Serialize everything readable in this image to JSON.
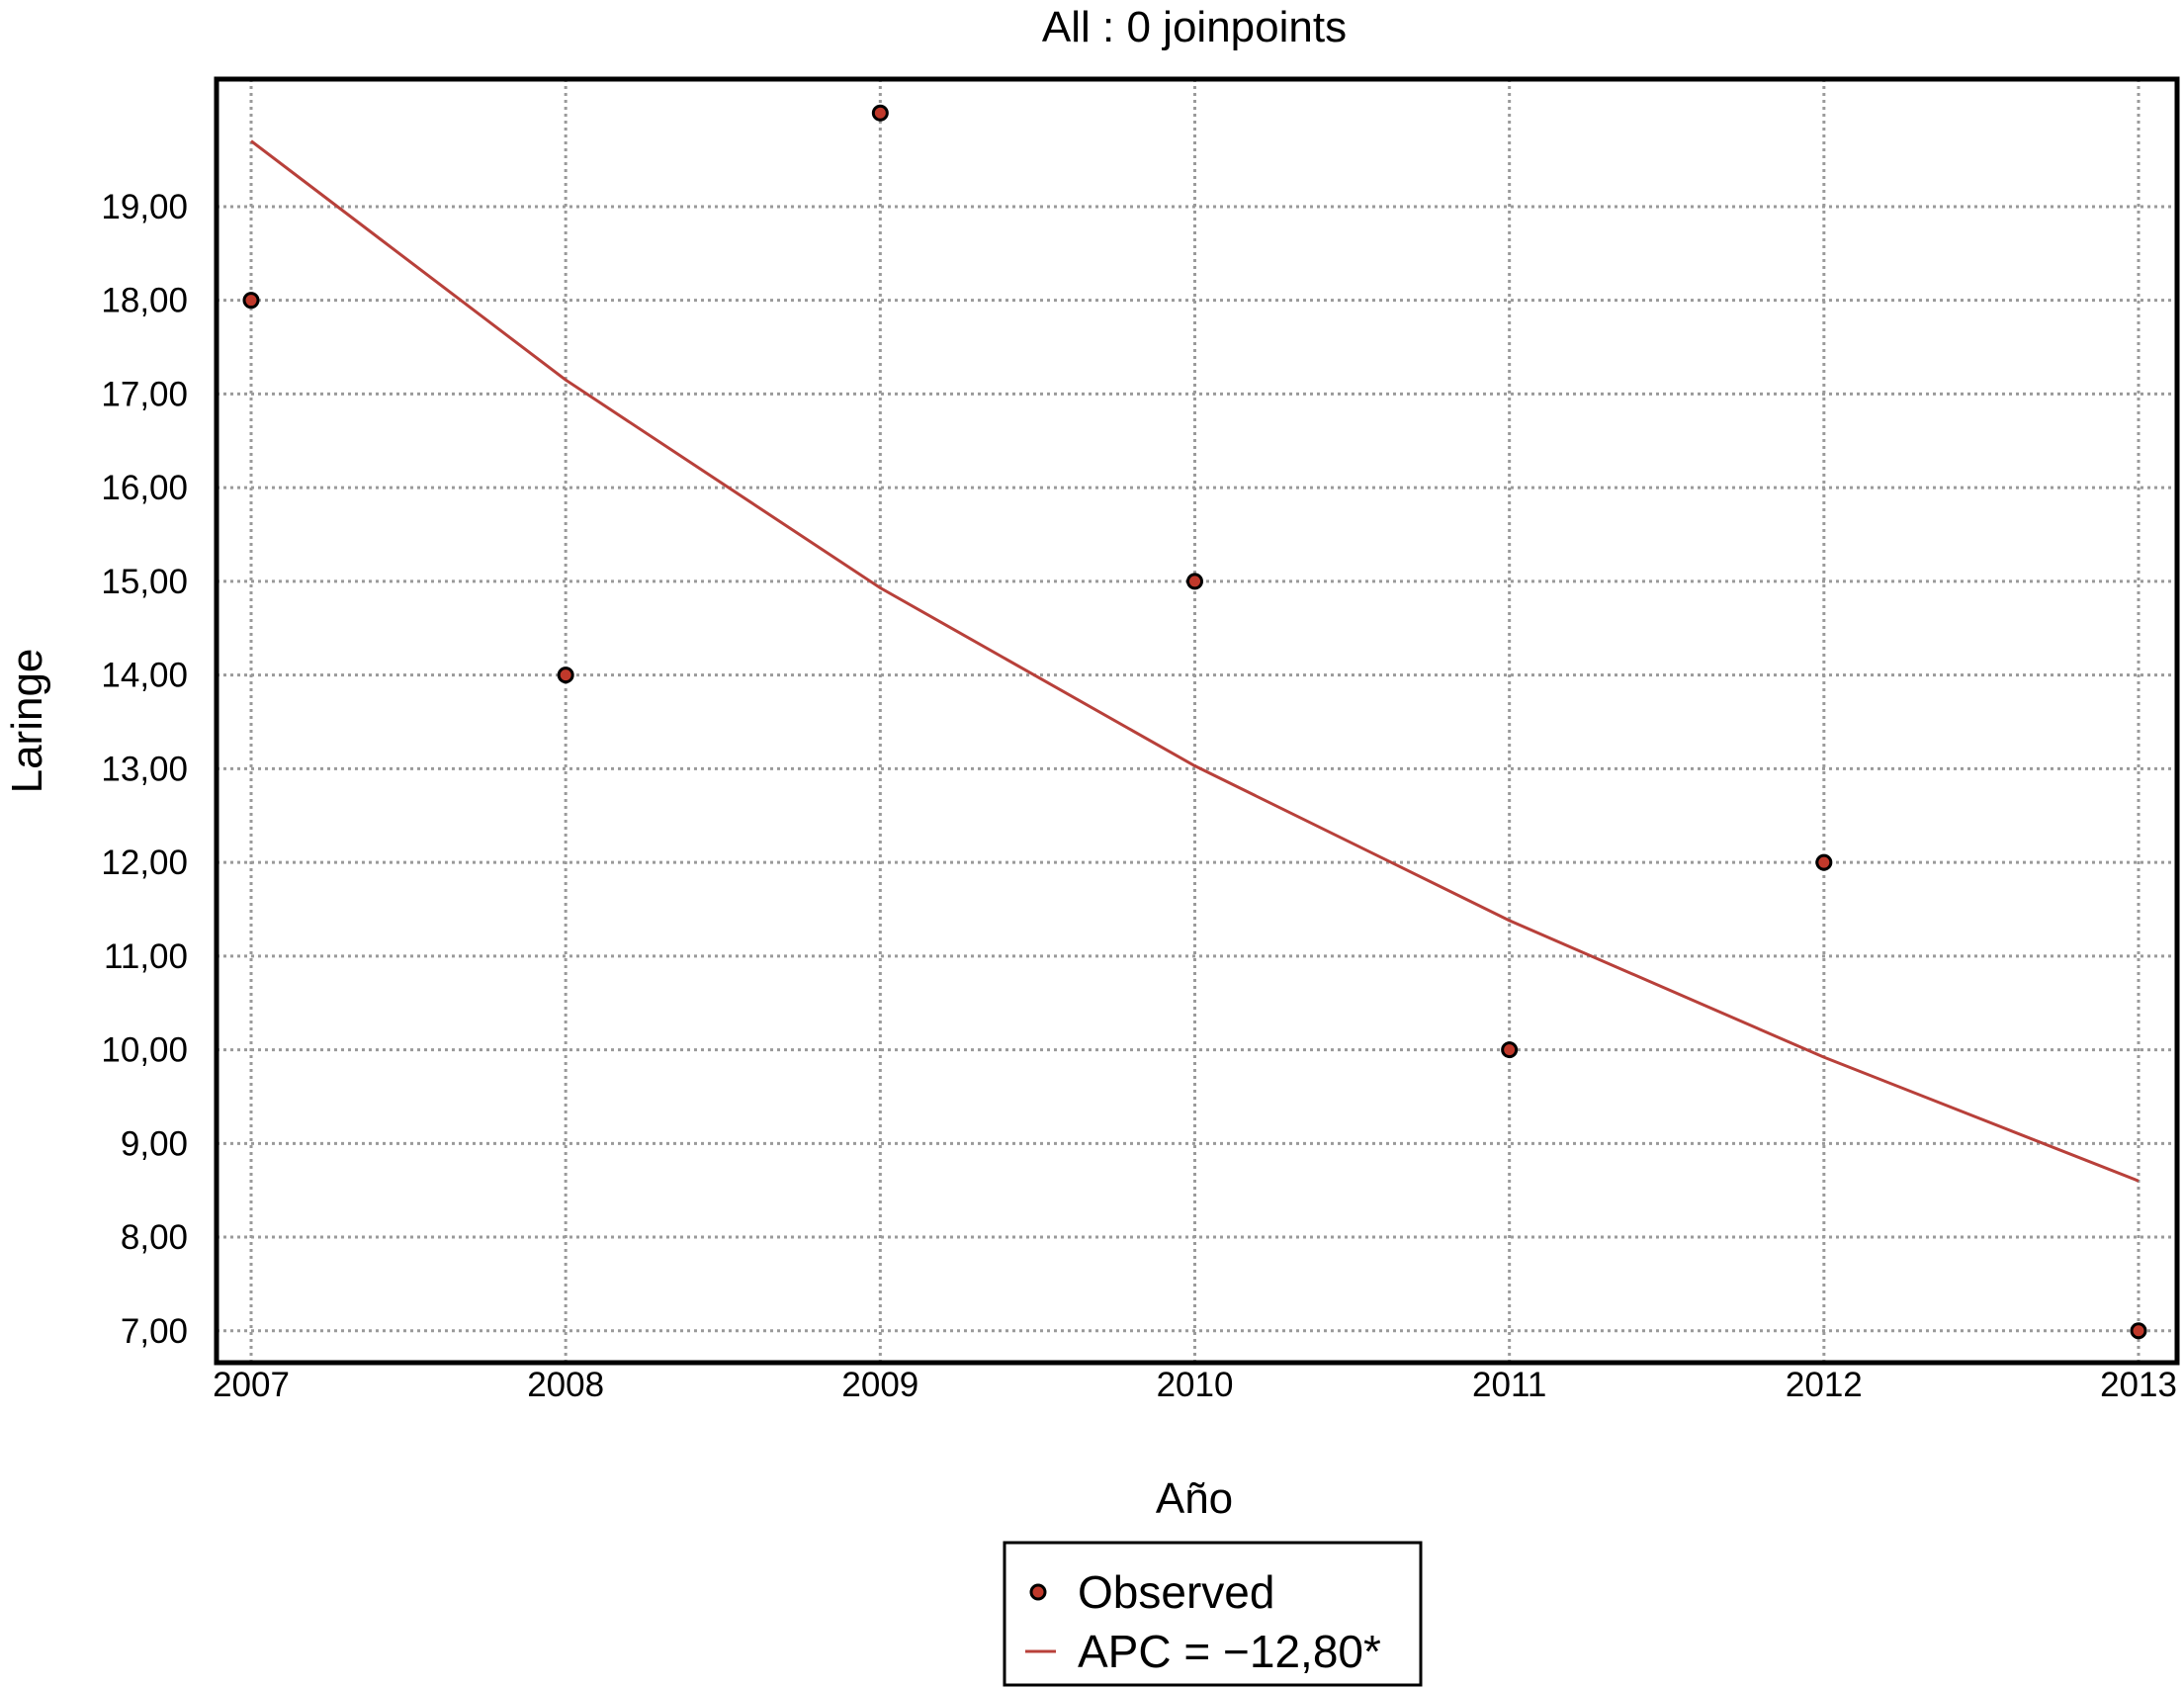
{
  "chart_data": {
    "type": "scatter",
    "title": "All : 0 joinpoints",
    "xlabel": "Año",
    "ylabel": "Laringe",
    "xlim": [
      2007,
      2013
    ],
    "ylim": [
      6.85,
      20.15
    ],
    "x_ticks": [
      2007,
      2008,
      2009,
      2010,
      2011,
      2012,
      2013
    ],
    "x_tick_labels": [
      "2007",
      "2008",
      "2009",
      "2010",
      "2011",
      "2012",
      "2013"
    ],
    "y_ticks": [
      7,
      8,
      9,
      10,
      11,
      12,
      13,
      14,
      15,
      16,
      17,
      18,
      19
    ],
    "y_tick_labels": [
      "7,00",
      "8,00",
      "9,00",
      "10,00",
      "11,00",
      "12,00",
      "13,00",
      "14,00",
      "15,00",
      "16,00",
      "17,00",
      "18,00",
      "19,00"
    ],
    "grid": true,
    "legend_position": "bottom-center",
    "series": [
      {
        "name": "Observed",
        "kind": "scatter",
        "color": "#c0392b",
        "x": [
          2007,
          2008,
          2009,
          2010,
          2011,
          2012,
          2013
        ],
        "y": [
          18.0,
          14.0,
          20.0,
          15.0,
          10.0,
          12.0,
          7.0
        ]
      },
      {
        "name": "APC = −12,80*",
        "kind": "line",
        "color": "#b8403a",
        "x": [
          2007,
          2008,
          2009,
          2010,
          2011,
          2012,
          2013
        ],
        "y": [
          19.7,
          17.15,
          14.93,
          13.03,
          11.38,
          9.92,
          8.6
        ]
      }
    ]
  }
}
